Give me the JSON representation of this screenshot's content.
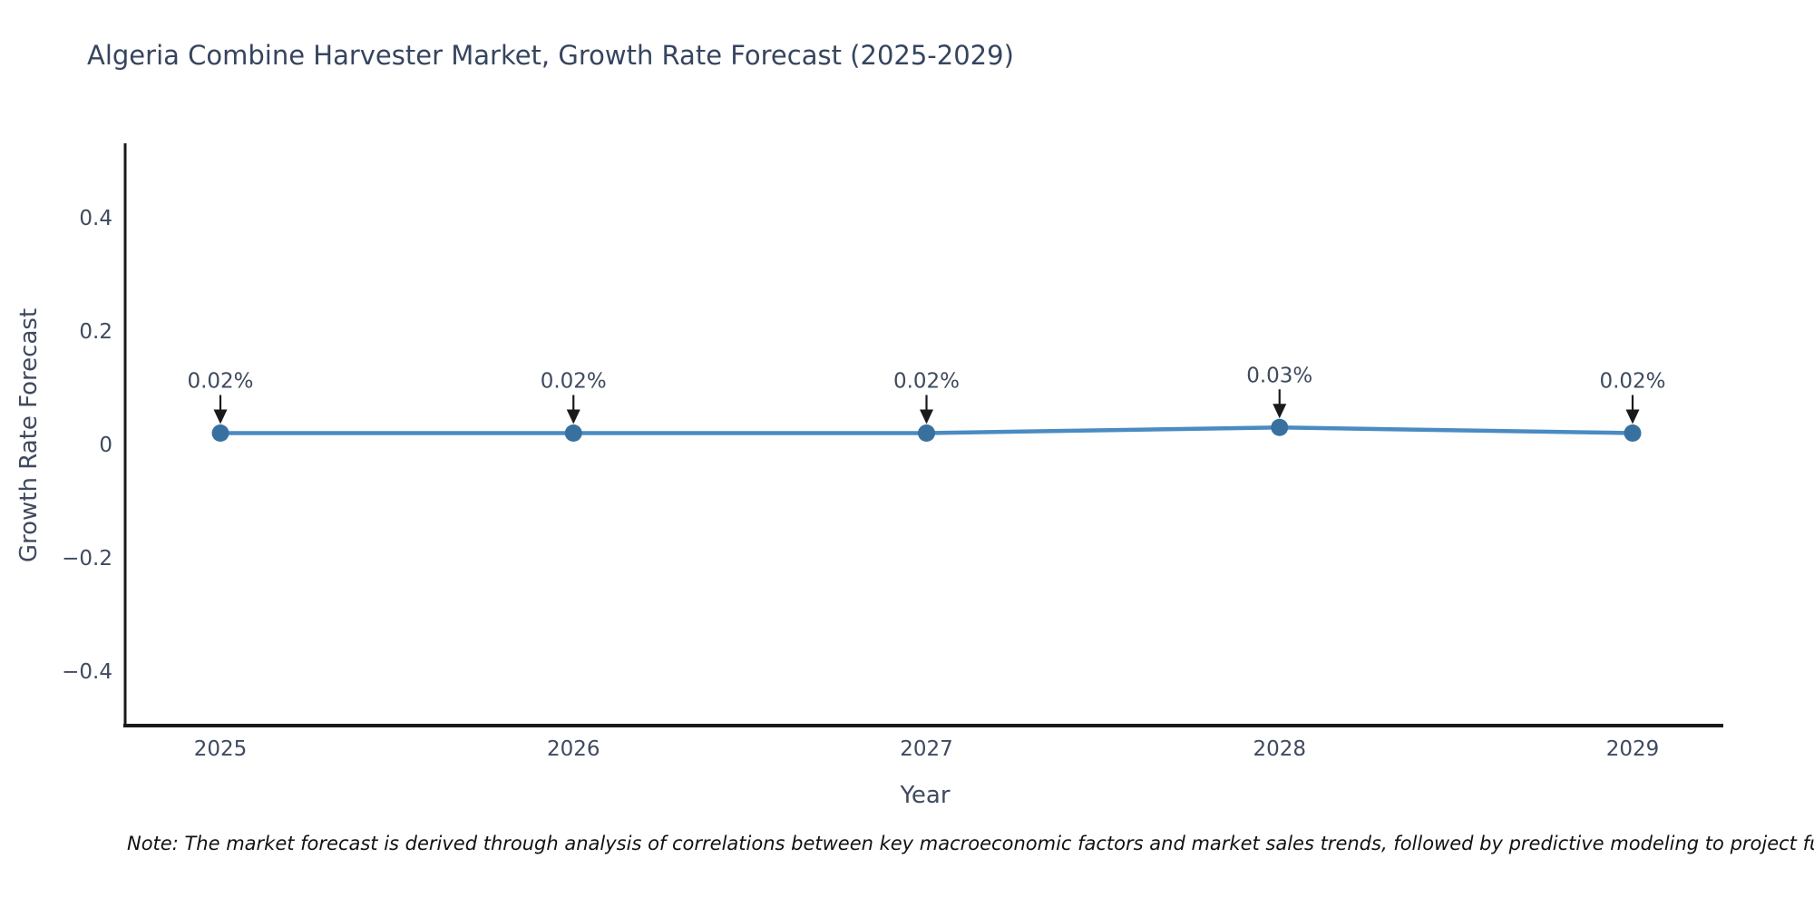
{
  "chart": {
    "title": "Algeria Combine Harvester Market, Growth Rate Forecast (2025-2029)",
    "ylabel": "Growth Rate Forecast",
    "xlabel": "Year",
    "note": "Note: The market forecast is derived through analysis of correlations between key macroeconomic factors and market sales trends, followed by predictive modeling to project future sales"
  },
  "chart_data": {
    "type": "line",
    "title": "Algeria Combine Harvester Market, Growth Rate Forecast (2025-2029)",
    "xlabel": "Year",
    "ylabel": "Growth Rate Forecast",
    "categories": [
      "2025",
      "2026",
      "2027",
      "2028",
      "2029"
    ],
    "series": [
      {
        "name": "Growth Rate Forecast",
        "values": [
          0.02,
          0.02,
          0.02,
          0.03,
          0.02
        ]
      }
    ],
    "point_labels": [
      "0.02%",
      "0.02%",
      "0.02%",
      "0.03%",
      "0.02%"
    ],
    "annotation_style": "down-arrow-to-point",
    "ylim": [
      -0.5,
      0.53
    ],
    "yticks": [
      0.4,
      0.2,
      0,
      -0.2,
      -0.4
    ],
    "ytick_labels": [
      "0.4",
      "0.2",
      "0",
      "−0.2",
      "−0.4"
    ],
    "grid": false,
    "legend": false,
    "spines": [
      "left",
      "bottom"
    ],
    "colors": {
      "line": "#4a8bc2",
      "marker": "#38719f",
      "arrow": "#1a1a1a",
      "axis": "#1a1a1a",
      "tick_text": "#3f4a5f",
      "title_text": "#36455f",
      "note_text": "#111111"
    }
  }
}
